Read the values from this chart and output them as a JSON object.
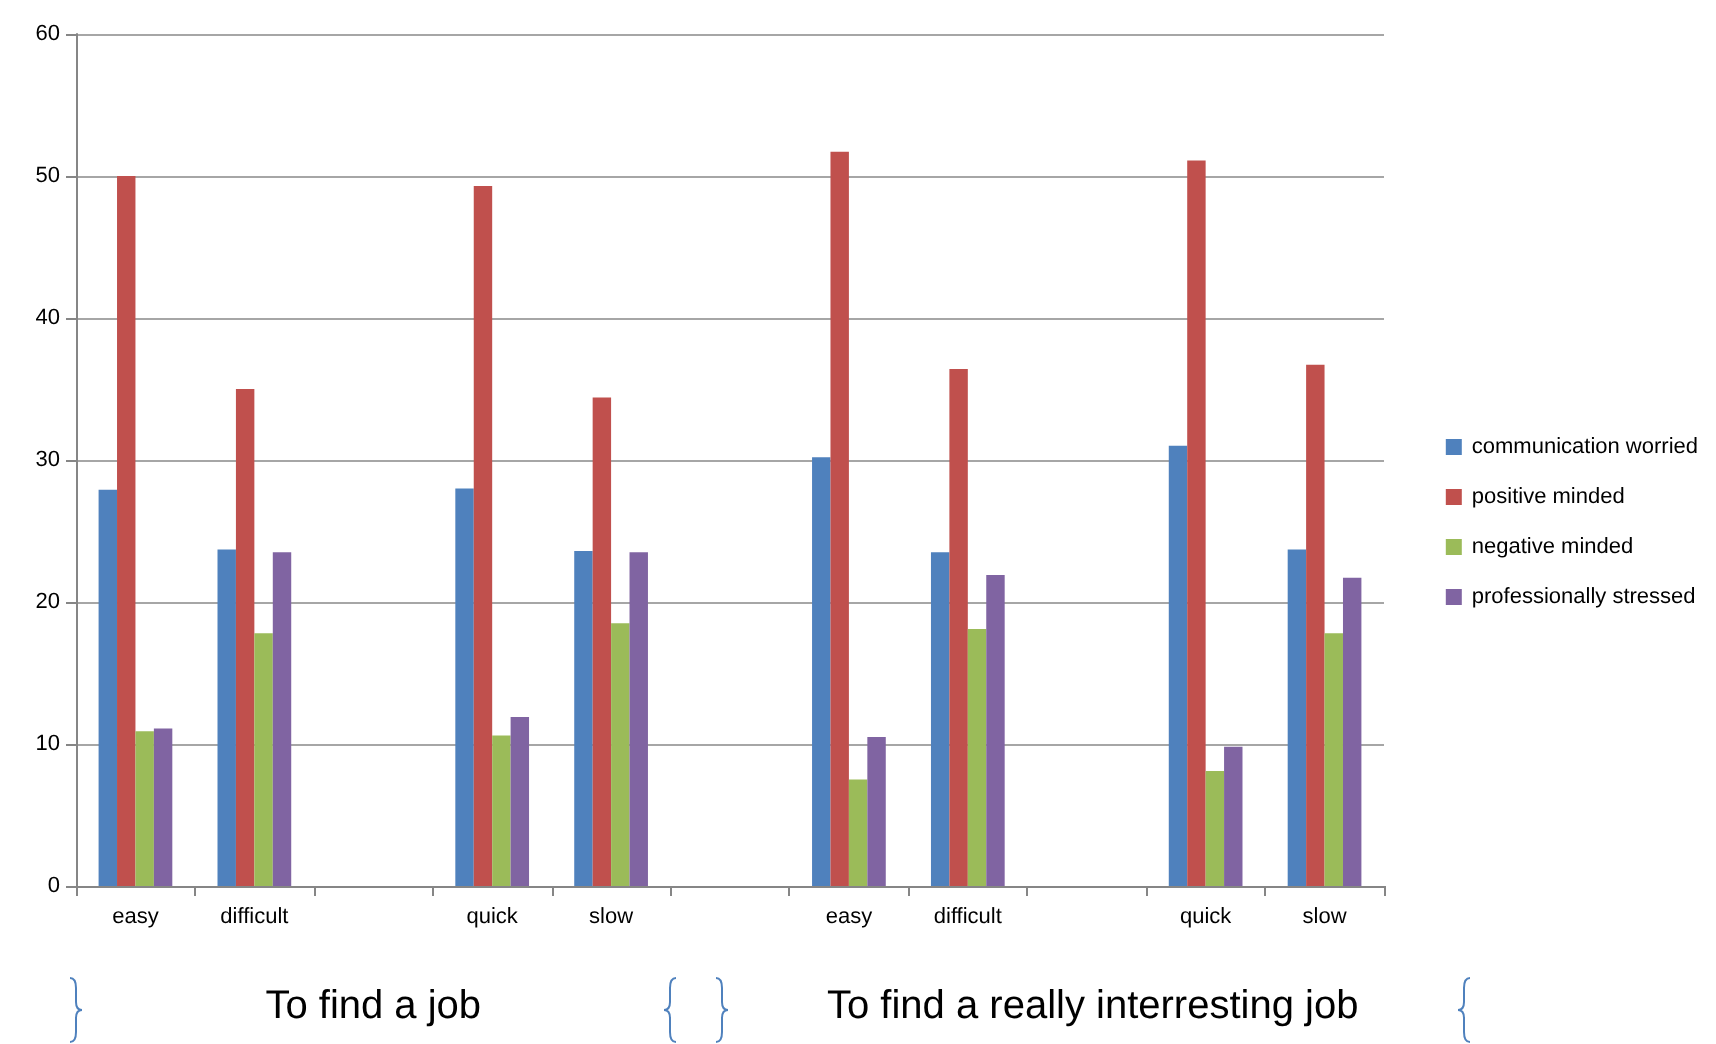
{
  "chart_data": {
    "type": "bar",
    "categories": [
      "easy",
      "difficult",
      null,
      "quick",
      "slow",
      null,
      "easy",
      "difficult",
      null,
      "quick",
      "slow"
    ],
    "series": [
      {
        "name": "communication worried",
        "color": "#4f81bd",
        "values": [
          27.9,
          23.7,
          null,
          28,
          23.6,
          null,
          30.2,
          23.5,
          null,
          31,
          23.7
        ]
      },
      {
        "name": "positive minded",
        "color": "#c0504d",
        "values": [
          50,
          35,
          null,
          49.3,
          34.4,
          null,
          51.7,
          36.4,
          null,
          51.1,
          36.7
        ]
      },
      {
        "name": "negative minded",
        "color": "#9bbb59",
        "values": [
          10.9,
          17.8,
          null,
          10.6,
          18.5,
          null,
          7.5,
          18.1,
          null,
          8.1,
          17.8
        ]
      },
      {
        "name": "professionally stressed",
        "color": "#8064a2",
        "values": [
          11.1,
          23.5,
          null,
          11.9,
          23.5,
          null,
          10.5,
          21.9,
          null,
          9.8,
          21.7
        ]
      }
    ],
    "ylim": [
      0,
      60
    ],
    "yticks": [
      0,
      10,
      20,
      30,
      40,
      50,
      60
    ],
    "grid": "y",
    "legend": "right",
    "annotations": [
      "To find a job",
      "To find a really interresting job"
    ]
  }
}
